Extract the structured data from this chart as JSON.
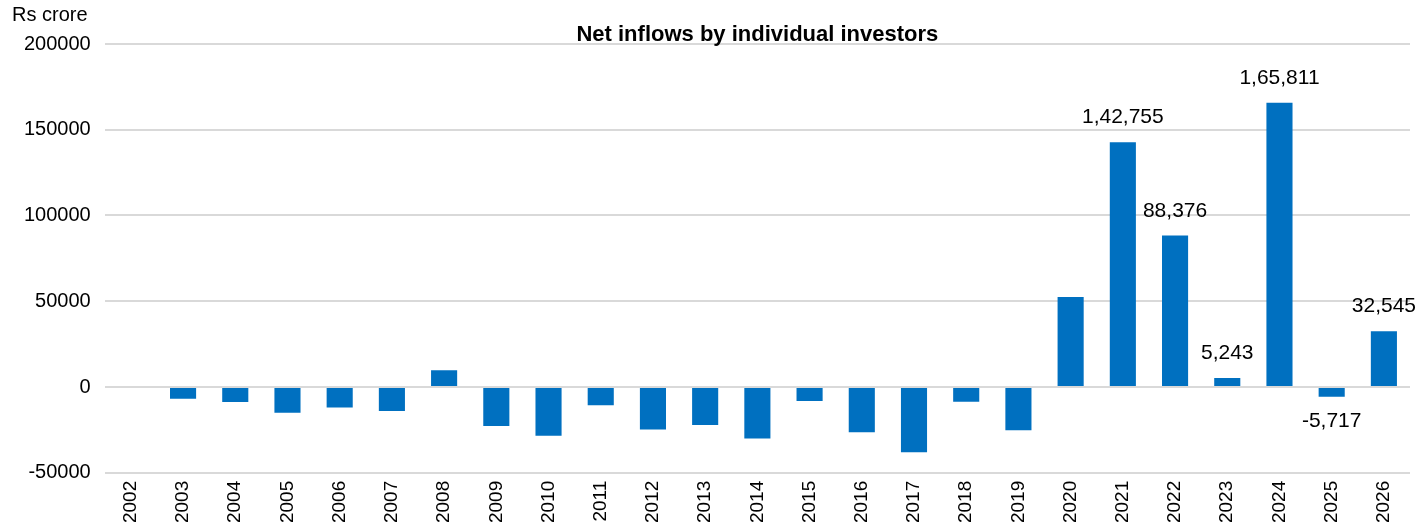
{
  "chart_data": {
    "type": "bar",
    "title": "Net inflows by individual investors",
    "ylabel": "Rs crore",
    "categories": [
      "2002",
      "2003",
      "2004",
      "2005",
      "2006",
      "2007",
      "2008",
      "2009",
      "2010",
      "2011",
      "2012",
      "2013",
      "2014",
      "2015",
      "2016",
      "2017",
      "2018",
      "2019",
      "2020",
      "2021",
      "2022",
      "2023",
      "2024",
      "2025",
      "2026"
    ],
    "values": [
      null,
      -6800,
      -8800,
      -15000,
      -12000,
      -14000,
      9800,
      -22800,
      -28400,
      -10600,
      -24800,
      -22200,
      -30000,
      -8200,
      -26400,
      -38000,
      -8600,
      -25200,
      52500,
      142755,
      88376,
      5243,
      165811,
      -5717,
      32545
    ],
    "value_labels": [
      null,
      null,
      null,
      null,
      null,
      null,
      null,
      null,
      null,
      null,
      null,
      null,
      null,
      null,
      null,
      null,
      null,
      null,
      null,
      "1,42,755",
      "88,376",
      "5,243",
      "1,65,811",
      "-5,717",
      "32,545"
    ],
    "color": "#0070c0",
    "ylim": [
      -50000,
      200000
    ],
    "yticks": [
      -50000,
      0,
      50000,
      100000,
      150000,
      200000
    ],
    "grid": "y",
    "legend": false
  }
}
